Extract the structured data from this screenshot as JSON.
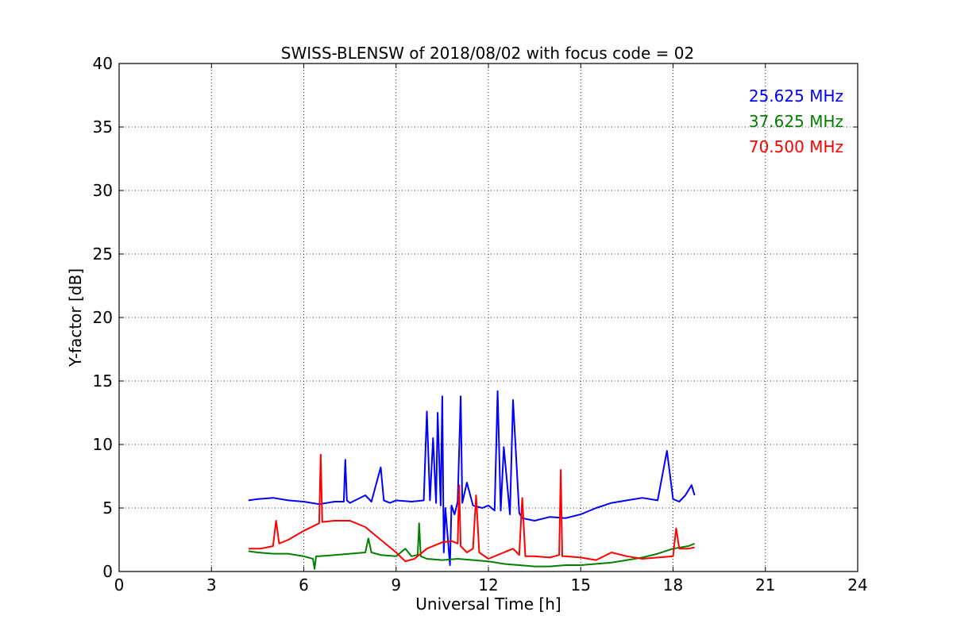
{
  "chart_data": {
    "type": "line",
    "title": "SWISS-BLENSW of 2018/08/02 with focus code = 02",
    "xlabel": "Universal Time [h]",
    "ylabel": "Y-factor [dB]",
    "xlim": [
      0,
      24
    ],
    "ylim": [
      0,
      40
    ],
    "xticks": [
      0,
      3,
      6,
      9,
      12,
      15,
      18,
      21,
      24
    ],
    "yticks": [
      0,
      5,
      10,
      15,
      20,
      25,
      30,
      35,
      40
    ],
    "grid": true,
    "legend_position": "top-right",
    "series": [
      {
        "name": "25.625 MHz",
        "color": "#0000ff",
        "x": [
          4.2,
          4.5,
          5.0,
          5.5,
          6.0,
          6.5,
          7.0,
          7.3,
          7.35,
          7.4,
          7.5,
          8.0,
          8.2,
          8.5,
          8.6,
          8.8,
          9.0,
          9.5,
          9.9,
          10.0,
          10.1,
          10.2,
          10.3,
          10.35,
          10.45,
          10.5,
          10.55,
          10.6,
          10.75,
          10.8,
          10.9,
          11.0,
          11.1,
          11.15,
          11.3,
          11.5,
          11.8,
          12.0,
          12.2,
          12.3,
          12.4,
          12.5,
          12.7,
          12.8,
          13.0,
          13.1,
          13.5,
          14.0,
          14.5,
          15.0,
          15.5,
          16.0,
          16.5,
          17.0,
          17.5,
          17.8,
          18.0,
          18.2,
          18.4,
          18.6,
          18.7
        ],
        "values": [
          5.6,
          5.7,
          5.8,
          5.6,
          5.5,
          5.3,
          5.5,
          5.5,
          8.8,
          5.6,
          5.4,
          6.0,
          5.5,
          8.2,
          5.6,
          5.4,
          5.6,
          5.5,
          5.6,
          12.6,
          5.6,
          10.5,
          5.4,
          12.5,
          5.2,
          13.8,
          1.5,
          5.0,
          0.5,
          5.2,
          4.5,
          5.5,
          13.8,
          5.4,
          7.0,
          5.2,
          5.0,
          5.2,
          4.8,
          14.2,
          4.8,
          9.8,
          4.5,
          13.5,
          4.6,
          4.2,
          4.0,
          4.3,
          4.2,
          4.5,
          5.0,
          5.4,
          5.6,
          5.8,
          5.6,
          9.5,
          5.7,
          5.5,
          6.0,
          6.8,
          6.0
        ]
      },
      {
        "name": "37.625 MHz",
        "color": "#008000",
        "x": [
          4.2,
          4.5,
          5.0,
          5.5,
          6.0,
          6.3,
          6.35,
          6.4,
          6.5,
          7.0,
          7.5,
          8.0,
          8.1,
          8.2,
          8.5,
          9.0,
          9.3,
          9.5,
          9.7,
          9.75,
          9.8,
          10.0,
          10.5,
          11.0,
          11.5,
          12.0,
          12.5,
          13.0,
          13.5,
          14.0,
          14.5,
          15.0,
          15.5,
          16.0,
          16.5,
          17.0,
          17.5,
          18.0,
          18.5,
          18.7
        ],
        "values": [
          1.6,
          1.5,
          1.4,
          1.4,
          1.2,
          1.0,
          0.2,
          1.2,
          1.2,
          1.3,
          1.4,
          1.5,
          2.6,
          1.5,
          1.3,
          1.2,
          1.8,
          1.2,
          1.3,
          3.8,
          1.2,
          1.0,
          0.9,
          1.0,
          0.9,
          0.8,
          0.6,
          0.5,
          0.4,
          0.4,
          0.5,
          0.5,
          0.6,
          0.7,
          0.9,
          1.1,
          1.4,
          1.8,
          2.0,
          2.2
        ]
      },
      {
        "name": "70.500 MHz",
        "color": "#ff0000",
        "x": [
          4.2,
          4.6,
          5.0,
          5.1,
          5.2,
          5.5,
          6.0,
          6.5,
          6.55,
          6.6,
          7.0,
          7.5,
          8.0,
          8.5,
          9.0,
          9.3,
          9.6,
          10.0,
          10.5,
          10.8,
          11.0,
          11.05,
          11.1,
          11.3,
          11.5,
          11.6,
          11.7,
          12.0,
          12.5,
          12.8,
          13.0,
          13.1,
          13.2,
          13.5,
          14.0,
          14.3,
          14.35,
          14.4,
          14.5,
          15.0,
          15.5,
          16.0,
          16.5,
          17.0,
          17.5,
          18.0,
          18.1,
          18.2,
          18.5,
          18.7
        ],
        "values": [
          1.8,
          1.8,
          2.0,
          4.0,
          2.2,
          2.5,
          3.2,
          3.8,
          9.2,
          3.9,
          4.0,
          4.0,
          3.5,
          2.5,
          1.5,
          0.8,
          1.0,
          1.8,
          2.3,
          2.4,
          2.2,
          6.8,
          2.0,
          1.5,
          1.8,
          6.0,
          1.5,
          1.0,
          1.5,
          1.8,
          1.3,
          5.8,
          1.2,
          1.2,
          1.1,
          1.3,
          8.0,
          1.2,
          1.2,
          1.1,
          0.9,
          1.5,
          1.2,
          1.0,
          1.1,
          1.2,
          3.4,
          1.8,
          1.8,
          1.9
        ]
      }
    ]
  }
}
